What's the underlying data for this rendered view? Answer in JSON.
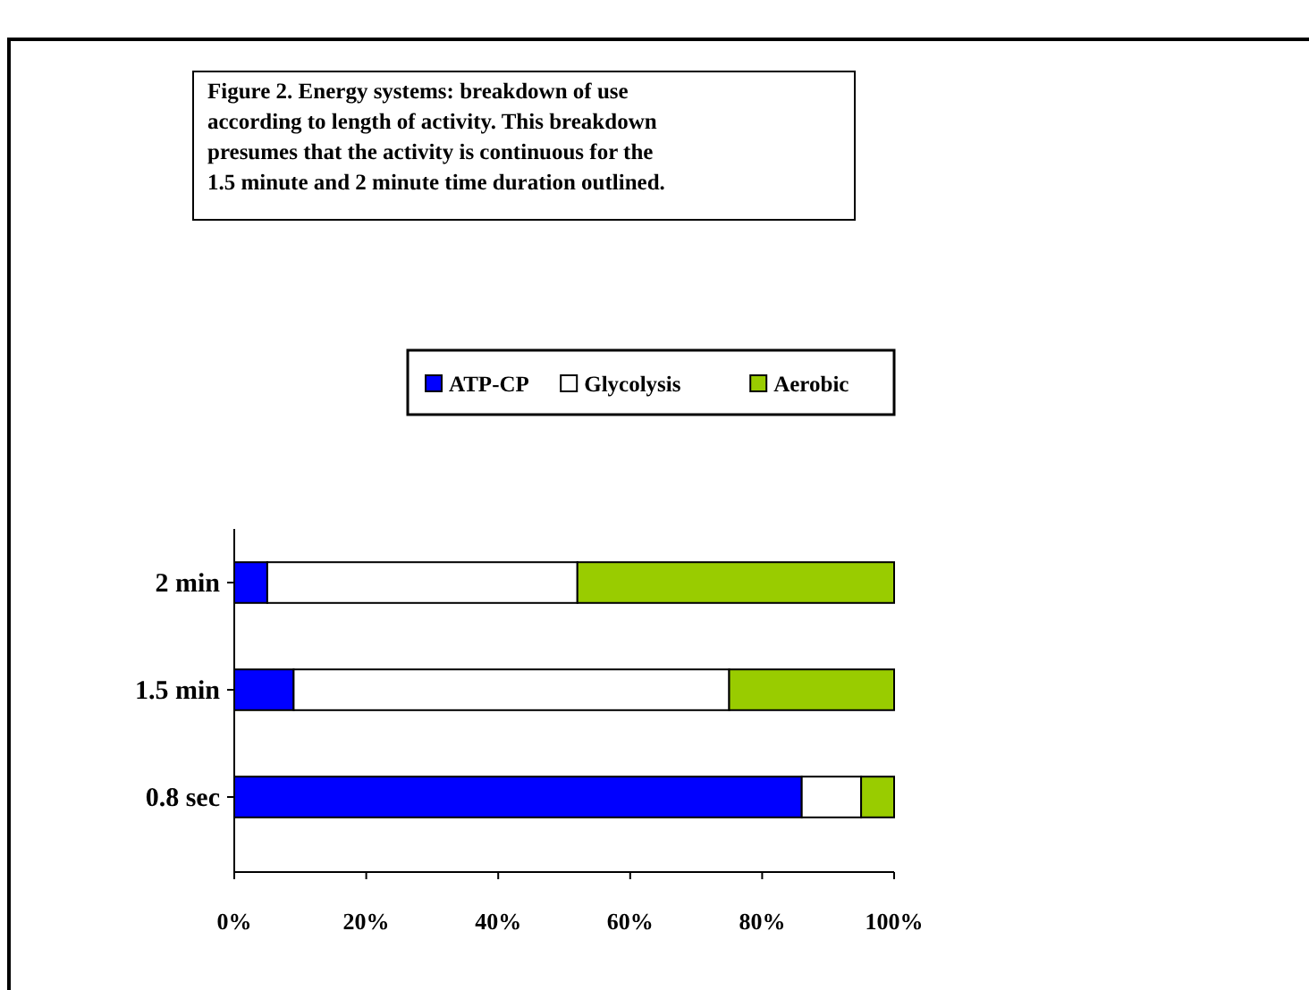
{
  "chart_data": {
    "type": "bar",
    "title": "Figure 2. Energy systems: breakdown of use according to length of activity.  This breakdown presumes that the activity is continuous for the 1.5 minute and 2 minute time duration outlined.",
    "orientation": "horizontal",
    "stacked": true,
    "categories": [
      "2 min",
      "1.5 min",
      "0.8 sec"
    ],
    "series": [
      {
        "name": "ATP-CP",
        "color": "#0000ff",
        "values": [
          5,
          9,
          86
        ]
      },
      {
        "name": "Glycolysis",
        "color": "#ffffff",
        "values": [
          47,
          66,
          9
        ]
      },
      {
        "name": "Aerobic",
        "color": "#99cc00",
        "values": [
          48,
          25,
          5
        ]
      }
    ],
    "xlim": [
      0,
      100
    ],
    "xticks": [
      {
        "value": 0,
        "label": "0%"
      },
      {
        "value": 20,
        "label": "20%"
      },
      {
        "value": 40,
        "label": "40%"
      },
      {
        "value": 60,
        "label": "60%"
      },
      {
        "value": 80,
        "label": "80%"
      },
      {
        "value": 100,
        "label": "100%"
      }
    ],
    "legend": "top",
    "grid": false
  }
}
